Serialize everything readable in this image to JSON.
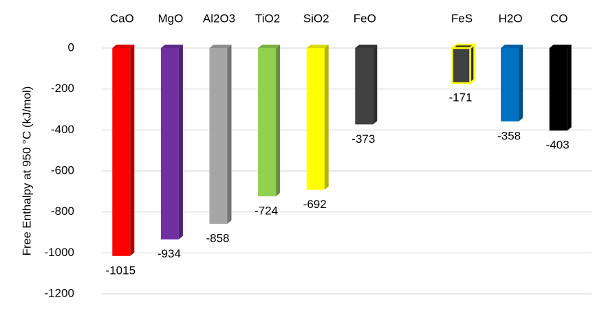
{
  "chart_data": {
    "type": "bar",
    "y_label": "Free Enthalpy at 950 °C (kJ/mol)",
    "categories": [
      "CaO",
      "MgO",
      "Al2O3",
      "TiO2",
      "SiO2",
      "FeO",
      null,
      "FeS",
      "H2O",
      "CO"
    ],
    "values": [
      -1015,
      -934,
      -858,
      -724,
      -692,
      -373,
      null,
      -171,
      -358,
      -403
    ],
    "colors": [
      "#ff0000",
      "#7030a0",
      "#a6a6a6",
      "#92d050",
      "#ffff00",
      "#404040",
      null,
      "#404040",
      "#0070c0",
      "#000000"
    ],
    "edge_colors": [
      null,
      null,
      null,
      null,
      null,
      null,
      null,
      "#ffff00",
      null,
      null
    ],
    "ylim": [
      -1200,
      0
    ],
    "yticks": [
      0,
      -200,
      -400,
      -600,
      -800,
      -1000,
      -1200
    ],
    "grid": true
  }
}
